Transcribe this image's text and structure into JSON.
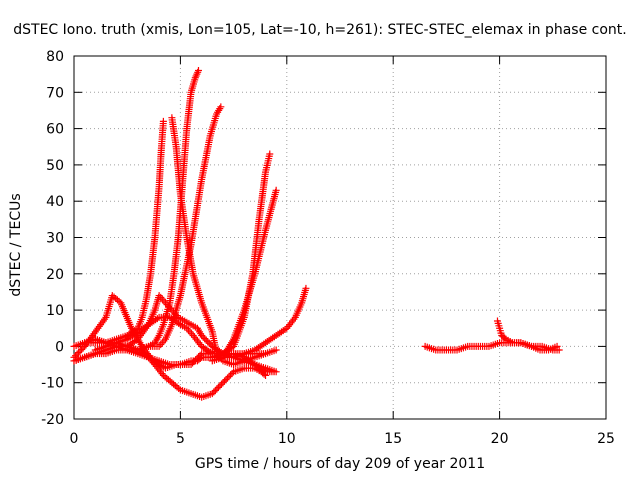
{
  "chart_data": {
    "type": "scatter",
    "title": "dSTEC Iono. truth (xmis, Lon=105, Lat=-10, h=261): STEC-STEC_elemax in phase cont.",
    "xlabel": "GPS time / hours of day 209 of year 2011",
    "ylabel": "dSTEC  / TECUs",
    "xlim": [
      0,
      25
    ],
    "ylim": [
      -20,
      80
    ],
    "xticks": [
      0,
      5,
      10,
      15,
      20,
      25
    ],
    "yticks": [
      -20,
      -10,
      0,
      10,
      20,
      30,
      40,
      50,
      60,
      70,
      80
    ],
    "grid": true,
    "marker": "plus",
    "color": "#ff0000",
    "series": [
      {
        "x": [
          0.0,
          0.5,
          1.0,
          1.5,
          2.0,
          2.5,
          3.0,
          3.2,
          3.4,
          3.6,
          3.8,
          4.0,
          4.1,
          4.2
        ],
        "y": [
          0,
          1,
          1,
          1,
          2,
          3,
          5,
          8,
          13,
          20,
          30,
          44,
          54,
          62
        ]
      },
      {
        "x": [
          0.0,
          0.5,
          1.0,
          1.5,
          2.0,
          2.5,
          3.0,
          3.5,
          3.8,
          4.0,
          4.2,
          4.5,
          4.7,
          4.9,
          5.1,
          5.3,
          5.5,
          5.7,
          5.85
        ],
        "y": [
          -4,
          -3,
          -2,
          -2,
          -1,
          -1,
          -1,
          0,
          1,
          3,
          6,
          12,
          20,
          30,
          45,
          60,
          70,
          74,
          76
        ]
      },
      {
        "x": [
          0.0,
          0.5,
          1.0,
          1.5,
          2.0,
          2.5,
          3.0,
          3.5,
          4.0,
          4.3,
          4.6,
          5.0,
          5.5,
          6.0,
          6.4,
          6.7,
          6.9
        ],
        "y": [
          -4,
          -3,
          -2,
          -1,
          0,
          0,
          -1,
          0,
          0,
          2,
          6,
          14,
          28,
          46,
          58,
          64,
          66
        ]
      },
      {
        "x": [
          0.0,
          0.5,
          1.0,
          1.5,
          1.8,
          2.2,
          2.7,
          3.2,
          3.7,
          4.3,
          4.8,
          5.5,
          6.0,
          6.5,
          6.7,
          7.0,
          7.5,
          8.0,
          8.5,
          9.0,
          9.4
        ],
        "y": [
          -3,
          0,
          4,
          8,
          14,
          12,
          5,
          0,
          -4,
          -6,
          -5,
          -5,
          -2,
          -2,
          -2,
          -2,
          -2,
          -3,
          -5,
          -7,
          -7
        ]
      },
      {
        "x": [
          1.0,
          1.5,
          2.0,
          2.5,
          3.0,
          3.5,
          3.8,
          4.2,
          4.6,
          5.0,
          5.5,
          6.0,
          6.5,
          7.0,
          7.5,
          8.0,
          8.5,
          8.8,
          9.0
        ],
        "y": [
          2,
          1,
          1,
          0,
          -1,
          -3,
          -5,
          -8,
          -10,
          -12,
          -13,
          -14,
          -13,
          -10,
          -7,
          -6,
          -6,
          -7,
          -8
        ]
      },
      {
        "x": [
          1.0,
          1.5,
          2.0,
          2.5,
          3.0,
          3.5,
          4.0,
          4.5,
          5.0,
          5.3,
          5.6,
          6.0,
          6.5,
          7.0,
          7.5,
          8.0,
          8.5,
          9.0
        ],
        "y": [
          -1,
          0,
          1,
          2,
          4,
          6,
          8,
          8,
          6,
          5,
          3,
          0,
          -2,
          -2,
          -2,
          -2,
          -2,
          -2
        ]
      },
      {
        "x": [
          0.5,
          1.0,
          1.5,
          2.0,
          2.5,
          3.0,
          3.5,
          4.0,
          4.5,
          5.0,
          5.5,
          5.8,
          6.0,
          6.3,
          6.6,
          7.0,
          7.5,
          8.0,
          8.5,
          9.0,
          9.5,
          10.0,
          10.4,
          10.7,
          10.9
        ],
        "y": [
          1,
          2,
          1,
          0,
          -1,
          -2,
          -3,
          -4,
          -5,
          -5,
          -4,
          -4,
          -3,
          -3,
          -3,
          -3,
          -3,
          -2,
          -1,
          1,
          3,
          5,
          8,
          12,
          16
        ]
      },
      {
        "x": [
          2.5,
          3.0,
          3.5,
          3.8,
          4.0,
          4.3,
          4.6,
          4.9,
          5.2,
          5.5,
          5.8,
          6.0,
          6.5,
          7.0,
          7.5,
          8.0,
          8.5,
          9.0,
          9.5
        ],
        "y": [
          0,
          2,
          6,
          10,
          14,
          12,
          10,
          8,
          7,
          6,
          5,
          3,
          0,
          -2,
          -3,
          -4,
          -5,
          -6,
          -7
        ]
      },
      {
        "x": [
          4.6,
          4.8,
          5.0,
          5.3,
          5.6,
          6.0,
          6.5,
          6.7,
          7.0,
          7.5,
          8.0,
          8.5,
          9.0,
          9.5
        ],
        "y": [
          63,
          55,
          42,
          30,
          20,
          12,
          4,
          -2,
          -4,
          -5,
          -4,
          -3,
          -2,
          -1
        ]
      },
      {
        "x": [
          6.0,
          6.5,
          7.0,
          7.5,
          8.0,
          8.4,
          8.7,
          9.0,
          9.2
        ],
        "y": [
          -3,
          -3,
          -2,
          0,
          8,
          20,
          35,
          48,
          53
        ]
      },
      {
        "x": [
          6.5,
          7.0,
          7.5,
          8.0,
          8.5,
          9.0,
          9.5
        ],
        "y": [
          -4,
          -3,
          2,
          10,
          20,
          32,
          43
        ]
      },
      {
        "x": [
          16.5,
          17.0,
          17.5,
          18.0,
          18.5,
          19.0,
          19.5,
          20.0,
          20.5,
          21.0,
          21.5,
          22.0,
          22.5,
          22.8
        ],
        "y": [
          0,
          -1,
          -1,
          -1,
          0,
          0,
          0,
          1,
          1,
          1,
          0,
          0,
          -1,
          -1
        ]
      },
      {
        "x": [
          19.9,
          20.0,
          20.1,
          20.3,
          20.6,
          21.0,
          21.5,
          21.9,
          22.3,
          22.7
        ],
        "y": [
          7,
          5,
          3,
          2,
          1,
          1,
          0,
          -1,
          -1,
          0
        ]
      }
    ]
  }
}
